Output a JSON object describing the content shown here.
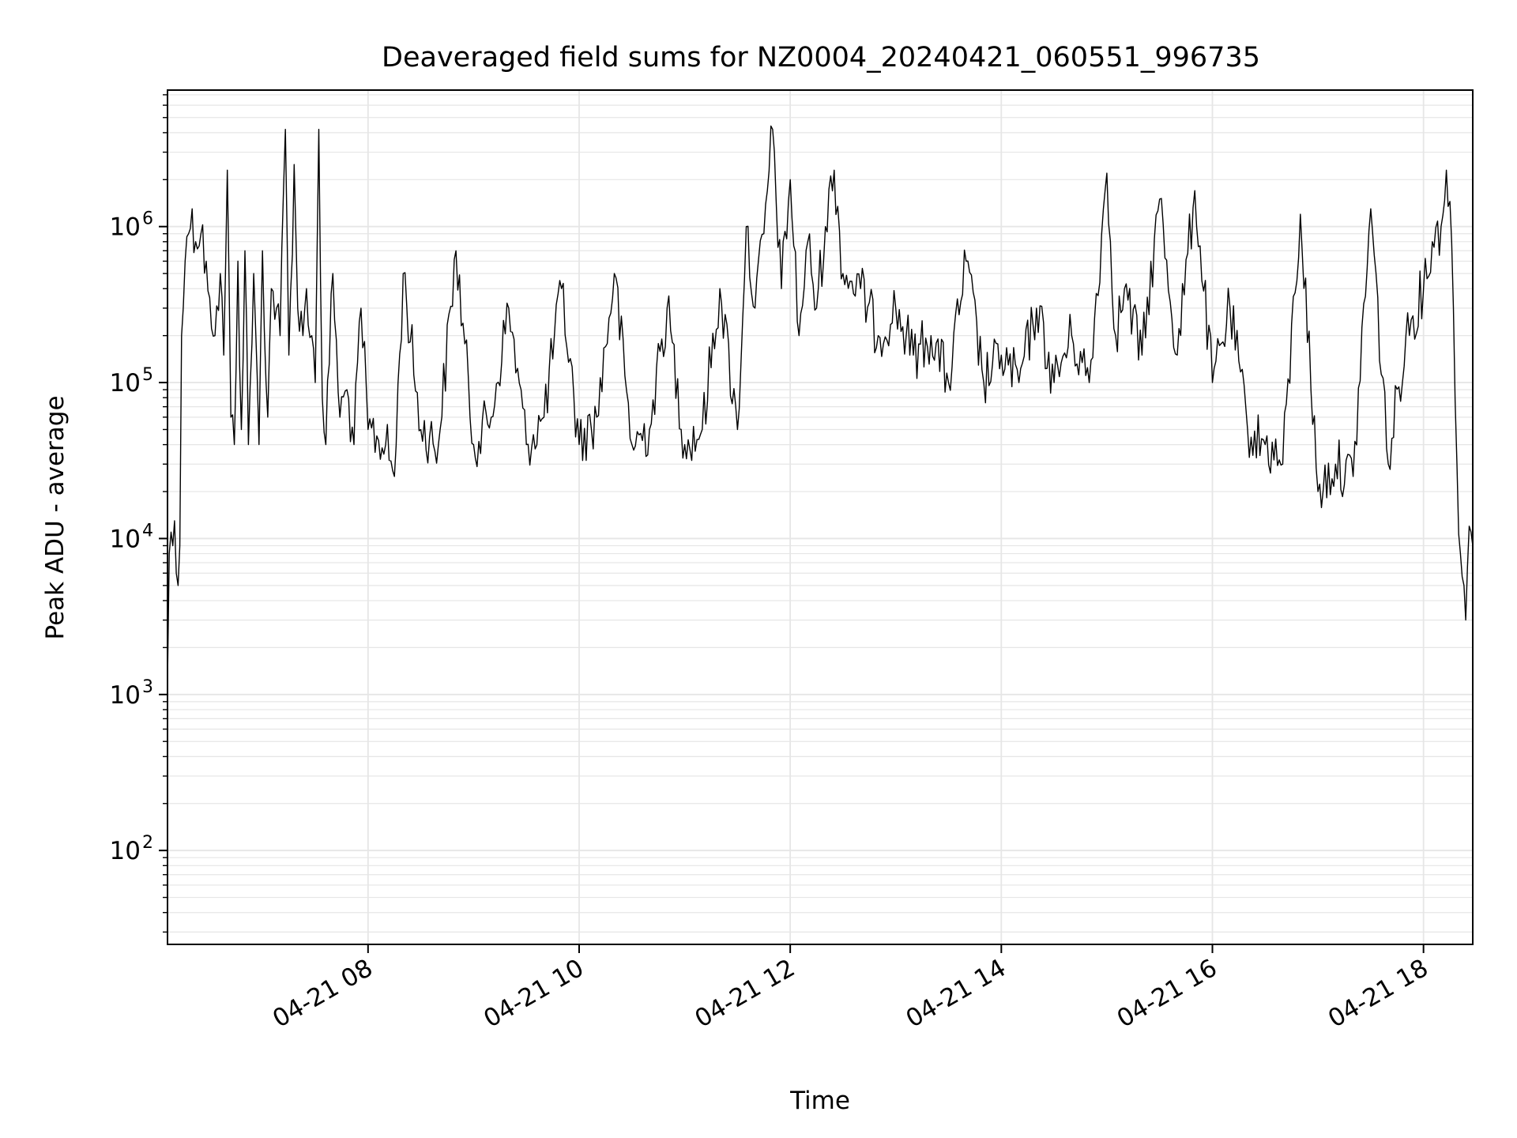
{
  "chart_data": {
    "type": "line",
    "title": "Deaveraged field sums for NZ0004_20240421_060551_996735",
    "xlabel": "Time",
    "ylabel": "Peak ADU - average",
    "xscale": "time",
    "yscale": "log",
    "xlim": [
      "2024-04-21 06:06",
      "2024-04-21 18:28"
    ],
    "ylim": [
      25,
      7500000
    ],
    "grid": "major+minor",
    "legend": "none",
    "colors": {
      "line": "#000000",
      "grid": "#e6e6e6",
      "axes": "#000000"
    },
    "x_ticks": [
      {
        "t": "2024-04-21 08:00",
        "label": "04-21 08"
      },
      {
        "t": "2024-04-21 10:00",
        "label": "04-21 10"
      },
      {
        "t": "2024-04-21 12:00",
        "label": "04-21 12"
      },
      {
        "t": "2024-04-21 14:00",
        "label": "04-21 14"
      },
      {
        "t": "2024-04-21 16:00",
        "label": "04-21 16"
      },
      {
        "t": "2024-04-21 18:00",
        "label": "04-21 18"
      }
    ],
    "y_ticks": [
      {
        "value": 100,
        "base": "10",
        "exp": "2"
      },
      {
        "value": 1000,
        "base": "10",
        "exp": "3"
      },
      {
        "value": 10000,
        "base": "10",
        "exp": "4"
      },
      {
        "value": 100000,
        "base": "10",
        "exp": "5"
      },
      {
        "value": 1000000,
        "base": "10",
        "exp": "6"
      }
    ],
    "series": [
      {
        "values_note_free": true,
        "points": [
          [
            "2024-04-21 06:06",
            1200
          ],
          [
            "2024-04-21 06:07",
            8000
          ],
          [
            "2024-04-21 06:08",
            11000
          ],
          [
            "2024-04-21 06:09",
            9000
          ],
          [
            "2024-04-21 06:10",
            13000
          ],
          [
            "2024-04-21 06:11",
            6000
          ],
          [
            "2024-04-21 06:12",
            5000
          ],
          [
            "2024-04-21 06:13",
            9000
          ],
          [
            "2024-04-21 06:14",
            200000
          ],
          [
            "2024-04-21 06:16",
            600000
          ],
          [
            "2024-04-21 06:18",
            900000
          ],
          [
            "2024-04-21 06:20",
            1300000
          ],
          [
            "2024-04-21 06:22",
            800000
          ],
          [
            "2024-04-21 06:25",
            900000
          ],
          [
            "2024-04-21 06:28",
            600000
          ],
          [
            "2024-04-21 06:30",
            350000
          ],
          [
            "2024-04-21 06:33",
            200000
          ],
          [
            "2024-04-21 06:36",
            500000
          ],
          [
            "2024-04-21 06:38",
            150000
          ],
          [
            "2024-04-21 06:40",
            2300000
          ],
          [
            "2024-04-21 06:42",
            60000
          ],
          [
            "2024-04-21 06:44",
            40000
          ],
          [
            "2024-04-21 06:46",
            600000
          ],
          [
            "2024-04-21 06:48",
            50000
          ],
          [
            "2024-04-21 06:50",
            700000
          ],
          [
            "2024-04-21 06:52",
            40000
          ],
          [
            "2024-04-21 06:55",
            500000
          ],
          [
            "2024-04-21 06:58",
            40000
          ],
          [
            "2024-04-21 07:00",
            700000
          ],
          [
            "2024-04-21 07:03",
            60000
          ],
          [
            "2024-04-21 07:05",
            400000
          ],
          [
            "2024-04-21 07:08",
            300000
          ],
          [
            "2024-04-21 07:10",
            200000
          ],
          [
            "2024-04-21 07:13",
            4200000
          ],
          [
            "2024-04-21 07:15",
            150000
          ],
          [
            "2024-04-21 07:18",
            2500000
          ],
          [
            "2024-04-21 07:20",
            300000
          ],
          [
            "2024-04-21 07:23",
            200000
          ],
          [
            "2024-04-21 07:25",
            400000
          ],
          [
            "2024-04-21 07:28",
            200000
          ],
          [
            "2024-04-21 07:30",
            100000
          ],
          [
            "2024-04-21 07:32",
            4200000
          ],
          [
            "2024-04-21 07:34",
            80000
          ],
          [
            "2024-04-21 07:36",
            40000
          ],
          [
            "2024-04-21 07:40",
            500000
          ],
          [
            "2024-04-21 07:44",
            60000
          ],
          [
            "2024-04-21 07:48",
            90000
          ],
          [
            "2024-04-21 07:52",
            40000
          ],
          [
            "2024-04-21 07:56",
            300000
          ],
          [
            "2024-04-21 08:00",
            50000
          ],
          [
            "2024-04-21 08:10",
            40000
          ],
          [
            "2024-04-21 08:15",
            25000
          ],
          [
            "2024-04-21 08:20",
            500000
          ],
          [
            "2024-04-21 08:30",
            50000
          ],
          [
            "2024-04-21 08:40",
            40000
          ],
          [
            "2024-04-21 08:50",
            700000
          ],
          [
            "2024-04-21 09:00",
            40000
          ],
          [
            "2024-04-21 09:10",
            60000
          ],
          [
            "2024-04-21 09:20",
            300000
          ],
          [
            "2024-04-21 09:30",
            40000
          ],
          [
            "2024-04-21 09:40",
            60000
          ],
          [
            "2024-04-21 09:50",
            400000
          ],
          [
            "2024-04-21 10:00",
            40000
          ],
          [
            "2024-04-21 10:10",
            60000
          ],
          [
            "2024-04-21 10:20",
            500000
          ],
          [
            "2024-04-21 10:30",
            40000
          ],
          [
            "2024-04-21 10:40",
            50000
          ],
          [
            "2024-04-21 10:50",
            300000
          ],
          [
            "2024-04-21 11:00",
            40000
          ],
          [
            "2024-04-21 11:10",
            50000
          ],
          [
            "2024-04-21 11:20",
            400000
          ],
          [
            "2024-04-21 11:30",
            50000
          ],
          [
            "2024-04-21 11:35",
            1000000
          ],
          [
            "2024-04-21 11:40",
            300000
          ],
          [
            "2024-04-21 11:45",
            900000
          ],
          [
            "2024-04-21 11:50",
            4200000
          ],
          [
            "2024-04-21 11:55",
            400000
          ],
          [
            "2024-04-21 12:00",
            2000000
          ],
          [
            "2024-04-21 12:05",
            200000
          ],
          [
            "2024-04-21 12:10",
            800000
          ],
          [
            "2024-04-21 12:15",
            300000
          ],
          [
            "2024-04-21 12:20",
            1000000
          ],
          [
            "2024-04-21 12:25",
            2300000
          ],
          [
            "2024-04-21 12:30",
            500000
          ],
          [
            "2024-04-21 12:40",
            400000
          ],
          [
            "2024-04-21 12:50",
            200000
          ],
          [
            "2024-04-21 13:00",
            300000
          ],
          [
            "2024-04-21 13:10",
            150000
          ],
          [
            "2024-04-21 13:20",
            200000
          ],
          [
            "2024-04-21 13:30",
            100000
          ],
          [
            "2024-04-21 13:40",
            600000
          ],
          [
            "2024-04-21 13:50",
            100000
          ],
          [
            "2024-04-21 14:00",
            150000
          ],
          [
            "2024-04-21 14:10",
            100000
          ],
          [
            "2024-04-21 14:20",
            300000
          ],
          [
            "2024-04-21 14:30",
            100000
          ],
          [
            "2024-04-21 14:40",
            200000
          ],
          [
            "2024-04-21 14:50",
            100000
          ],
          [
            "2024-04-21 15:00",
            2200000
          ],
          [
            "2024-04-21 15:05",
            200000
          ],
          [
            "2024-04-21 15:10",
            400000
          ],
          [
            "2024-04-21 15:20",
            150000
          ],
          [
            "2024-04-21 15:30",
            1500000
          ],
          [
            "2024-04-21 15:40",
            150000
          ],
          [
            "2024-04-21 15:50",
            1700000
          ],
          [
            "2024-04-21 16:00",
            100000
          ],
          [
            "2024-04-21 16:10",
            300000
          ],
          [
            "2024-04-21 16:20",
            50000
          ],
          [
            "2024-04-21 16:30",
            40000
          ],
          [
            "2024-04-21 16:40",
            30000
          ],
          [
            "2024-04-21 16:50",
            1200000
          ],
          [
            "2024-04-21 17:00",
            20000
          ],
          [
            "2024-04-21 17:10",
            30000
          ],
          [
            "2024-04-21 17:20",
            25000
          ],
          [
            "2024-04-21 17:30",
            1300000
          ],
          [
            "2024-04-21 17:40",
            30000
          ],
          [
            "2024-04-21 17:50",
            200000
          ],
          [
            "2024-04-21 18:00",
            400000
          ],
          [
            "2024-04-21 18:05",
            800000
          ],
          [
            "2024-04-21 18:10",
            1000000
          ],
          [
            "2024-04-21 18:13",
            2300000
          ],
          [
            "2024-04-21 18:16",
            800000
          ],
          [
            "2024-04-21 18:19",
            30000
          ],
          [
            "2024-04-21 18:21",
            8000
          ],
          [
            "2024-04-21 18:23",
            5000
          ],
          [
            "2024-04-21 18:24",
            3000
          ],
          [
            "2024-04-21 18:26",
            12000
          ],
          [
            "2024-04-21 18:28",
            9000
          ]
        ]
      }
    ]
  }
}
